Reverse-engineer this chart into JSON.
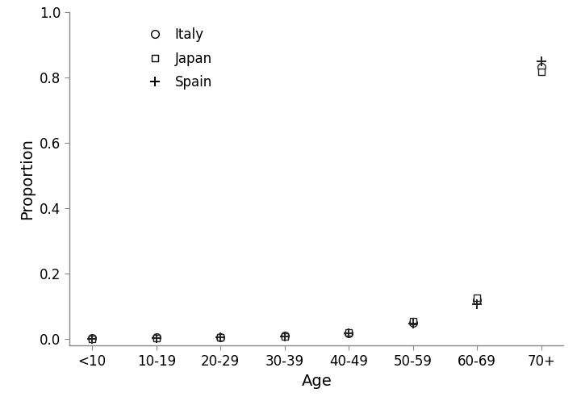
{
  "categories": [
    "<10",
    "10-19",
    "20-29",
    "30-39",
    "40-49",
    "50-59",
    "60-69",
    "70+"
  ],
  "italy": [
    0.003,
    0.004,
    0.006,
    0.009,
    0.018,
    0.048,
    0.118,
    0.831
  ],
  "japan": [
    0.0,
    0.003,
    0.005,
    0.008,
    0.02,
    0.053,
    0.126,
    0.816
  ],
  "spain": [
    0.001,
    0.002,
    0.004,
    0.007,
    0.017,
    0.047,
    0.107,
    0.849
  ],
  "xlabel": "Age",
  "ylabel": "Proportion",
  "ylim": [
    -0.02,
    1.0
  ],
  "yticks": [
    0.0,
    0.2,
    0.4,
    0.6,
    0.8,
    1.0
  ],
  "background_color": "#ffffff",
  "marker_color": "#222222",
  "spine_color": "#888888",
  "marker_size_circle": 7,
  "marker_size_square": 6,
  "marker_size_plus": 9,
  "tick_fontsize": 12,
  "label_fontsize": 14,
  "legend_fontsize": 12
}
